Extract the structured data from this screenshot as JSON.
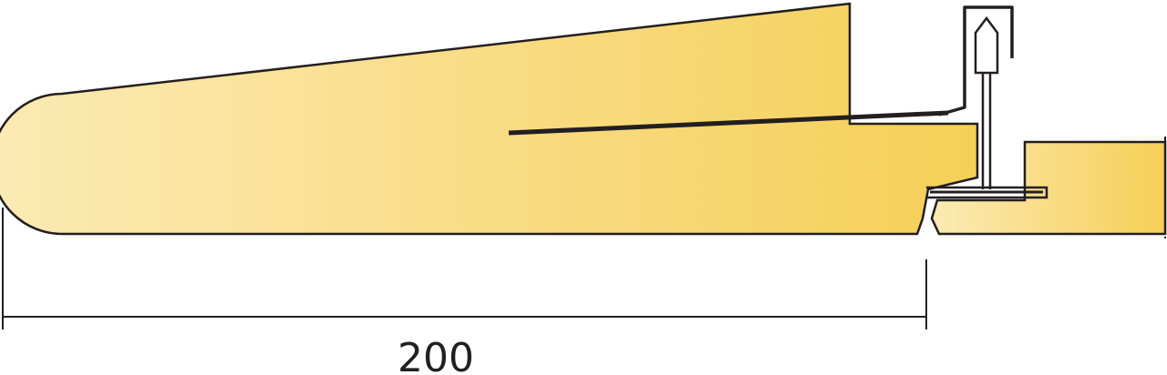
{
  "dimension": {
    "label": "200"
  },
  "colors": {
    "fill_light": "#fbeab4",
    "fill_dark": "#f6cf57",
    "outline": "#231f20",
    "background": "#ffffff"
  }
}
